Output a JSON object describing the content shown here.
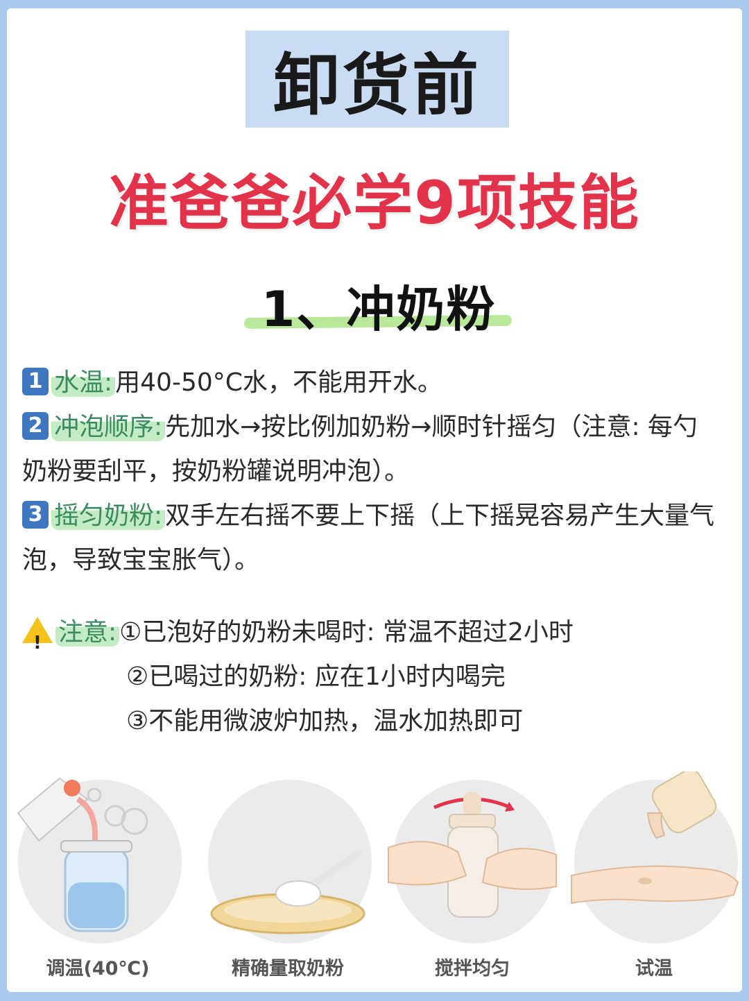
{
  "hero": {
    "text": "卸货前"
  },
  "headline": "准爸爸必学9项技能",
  "section_title": "1、冲奶粉",
  "steps": [
    {
      "badge": "1",
      "label": "水温:",
      "text": "用40-50°C水，不能用开水。"
    },
    {
      "badge": "2",
      "label": "冲泡顺序:",
      "text": "先加水→按比例加奶粉→顺时针摇匀（注意: 每勺奶粉要刮平，按奶粉罐说明冲泡）。"
    },
    {
      "badge": "3",
      "label": "摇匀奶粉:",
      "text": "双手左右摇不要上下摇（上下摇晃容易产生大量气泡，导致宝宝胀气）。"
    }
  ],
  "notes": {
    "icon": "warning-icon",
    "label": "注意:",
    "items": [
      "①已泡好的奶粉未喝时: 常温不超过2小时",
      "②已喝过的奶粉: 应在1小时内喝完",
      "③不能用微波炉加热，温水加热即可"
    ]
  },
  "illustrations": [
    {
      "icon": "pouring-water-bottle-icon",
      "caption": "调温(40℃)"
    },
    {
      "icon": "scoop-powder-icon",
      "caption": "精确量取奶粉"
    },
    {
      "icon": "shaking-bottle-icon",
      "caption": "搅拌均匀"
    },
    {
      "icon": "wrist-test-icon",
      "caption": "试温"
    }
  ],
  "colors": {
    "background": "#a9c9ee",
    "hero_box": "#c9dcf3",
    "headline": "#e2334a",
    "badge": "#3e77c0",
    "highlight": "#c4ecc4",
    "underline": "#b9e89a"
  }
}
